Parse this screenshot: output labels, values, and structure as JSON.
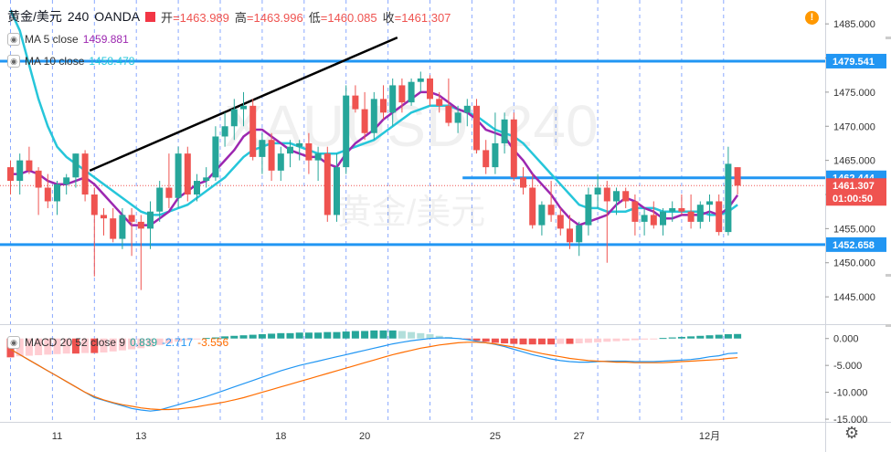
{
  "header": {
    "symbol": "黄金/美元",
    "interval": "240",
    "broker": "OANDA",
    "open_label": "开",
    "open": "1463.989",
    "high_label": "高",
    "high": "1463.996",
    "low_label": "低",
    "low": "1460.085",
    "close_label": "收",
    "close": "1461.307"
  },
  "watermark": {
    "line1": "XAUUSD, 240",
    "line2": "黄金/美元"
  },
  "indicators": {
    "ma5": {
      "label": "MA 5 close",
      "value": "1459.881",
      "color": "#9c27b0"
    },
    "ma10": {
      "label": "MA 10 close",
      "value": "1458.478",
      "color": "#26c6da"
    },
    "macd": {
      "label": "MACD 20 52 close 9",
      "hist": "0.839",
      "macd": "-2.717",
      "signal": "-3.556",
      "hist_color": "#26a69a",
      "macd_color": "#2196f3",
      "signal_color": "#ff6d00"
    }
  },
  "colors": {
    "up": "#26a69a",
    "down": "#ef5350",
    "hline": "#2196f3",
    "trend": "#000000",
    "close_line": "#ef5350"
  },
  "icons": {
    "warning": "warning-icon",
    "settings": "gear-icon",
    "visibility": "eye-icon"
  },
  "warning_glyph": "!",
  "settings_glyph": "⚙",
  "eye_glyph": "◉",
  "time_labels": [
    {
      "i": 5,
      "text": "11"
    },
    {
      "i": 14,
      "text": "13"
    },
    {
      "i": 29,
      "text": "18"
    },
    {
      "i": 38,
      "text": "20"
    },
    {
      "i": 52,
      "text": "25"
    },
    {
      "i": 61,
      "text": "27"
    },
    {
      "i": 75,
      "text": "12月"
    }
  ],
  "chart_data": {
    "type": "candlestick",
    "price_axis": {
      "min": 1441,
      "max": 1488.5,
      "ticks": [
        1445,
        1450,
        1455,
        1460,
        1465,
        1470,
        1475,
        1480,
        1485
      ]
    },
    "price_tick_labels": [
      "1445.000",
      "1450.000",
      "1455.000",
      "1460.000",
      "1465.000",
      "1470.000",
      "1475.000",
      "1480.000",
      "1485.000"
    ],
    "candles": [
      [
        1464,
        1465,
        1460,
        1462
      ],
      [
        1462,
        1466,
        1460,
        1465
      ],
      [
        1465,
        1467,
        1463,
        1463.5
      ],
      [
        1463.5,
        1464,
        1457,
        1461
      ],
      [
        1461,
        1463,
        1458,
        1459
      ],
      [
        1459,
        1462,
        1457,
        1461.5
      ],
      [
        1461.5,
        1463,
        1460,
        1462.5
      ],
      [
        1462.5,
        1466,
        1461,
        1466
      ],
      [
        1466,
        1466.5,
        1459,
        1460
      ],
      [
        1460,
        1461,
        1448,
        1457
      ],
      [
        1457,
        1458,
        1454,
        1456.5
      ],
      [
        1456.5,
        1458,
        1453,
        1453.5
      ],
      [
        1453.5,
        1458,
        1452,
        1457
      ],
      [
        1457,
        1458,
        1451,
        1456
      ],
      [
        1456,
        1457,
        1446,
        1455
      ],
      [
        1455,
        1459,
        1452,
        1457.5
      ],
      [
        1457.5,
        1462,
        1456,
        1461
      ],
      [
        1461,
        1466,
        1458,
        1459.5
      ],
      [
        1459.5,
        1467,
        1458,
        1466
      ],
      [
        1466,
        1467,
        1459,
        1460
      ],
      [
        1460,
        1463,
        1459,
        1462
      ],
      [
        1462,
        1464,
        1461,
        1462.5
      ],
      [
        1462.5,
        1470,
        1462,
        1468.5
      ],
      [
        1468.5,
        1472,
        1467,
        1470
      ],
      [
        1470,
        1474,
        1468,
        1472.5
      ],
      [
        1472.5,
        1475,
        1470,
        1473
      ],
      [
        1473,
        1474,
        1465,
        1465.5
      ],
      [
        1465.5,
        1469,
        1463,
        1468
      ],
      [
        1468,
        1469,
        1462,
        1463.5
      ],
      [
        1463.5,
        1467,
        1462,
        1466
      ],
      [
        1466,
        1468,
        1464,
        1467
      ],
      [
        1467,
        1468,
        1465,
        1467.5
      ],
      [
        1467.5,
        1469,
        1463,
        1465
      ],
      [
        1465,
        1467,
        1462,
        1466
      ],
      [
        1466,
        1467,
        1456,
        1457
      ],
      [
        1457,
        1466,
        1456,
        1464
      ],
      [
        1464,
        1476,
        1463,
        1474.5
      ],
      [
        1474.5,
        1476,
        1472,
        1472.5
      ],
      [
        1472.5,
        1475,
        1468,
        1469
      ],
      [
        1469,
        1475,
        1468,
        1474
      ],
      [
        1474,
        1476,
        1471,
        1472
      ],
      [
        1472,
        1477,
        1470,
        1476
      ],
      [
        1476,
        1477,
        1472,
        1473.5
      ],
      [
        1473.5,
        1477,
        1473,
        1476.5
      ],
      [
        1476.5,
        1478,
        1475,
        1477
      ],
      [
        1477,
        1477.5,
        1473,
        1474
      ],
      [
        1474,
        1475,
        1472,
        1473
      ],
      [
        1473,
        1477,
        1470,
        1470.5
      ],
      [
        1470.5,
        1473,
        1469,
        1472
      ],
      [
        1472,
        1474,
        1470,
        1473
      ],
      [
        1473,
        1474,
        1466,
        1466.5
      ],
      [
        1466.5,
        1468,
        1463,
        1464
      ],
      [
        1464,
        1472,
        1463,
        1467.5
      ],
      [
        1467.5,
        1472,
        1466,
        1471
      ],
      [
        1471,
        1472,
        1462,
        1462.5
      ],
      [
        1462.5,
        1464,
        1460,
        1461
      ],
      [
        1461,
        1463,
        1455,
        1455.5
      ],
      [
        1455.5,
        1459,
        1454,
        1458.5
      ],
      [
        1458.5,
        1462,
        1456,
        1457
      ],
      [
        1457,
        1458,
        1454,
        1455
      ],
      [
        1455,
        1457,
        1452,
        1453
      ],
      [
        1453,
        1456,
        1451,
        1455.5
      ],
      [
        1455.5,
        1461,
        1454,
        1460
      ],
      [
        1460,
        1463,
        1458,
        1461
      ],
      [
        1461,
        1462,
        1450,
        1459
      ],
      [
        1459,
        1461,
        1457,
        1460.5
      ],
      [
        1460.5,
        1461,
        1458,
        1459
      ],
      [
        1459,
        1460,
        1454,
        1456
      ],
      [
        1456,
        1458,
        1454,
        1457
      ],
      [
        1457,
        1459,
        1455,
        1455.5
      ],
      [
        1455.5,
        1458,
        1454,
        1457.5
      ],
      [
        1457.5,
        1459,
        1456,
        1458
      ],
      [
        1458,
        1460,
        1457,
        1457.5
      ],
      [
        1457.5,
        1460,
        1455,
        1456
      ],
      [
        1456,
        1459,
        1455,
        1458.5
      ],
      [
        1458.5,
        1460,
        1456,
        1459
      ],
      [
        1459,
        1460,
        1454,
        1454.5
      ],
      [
        1454.5,
        1467,
        1454,
        1464.5
      ],
      [
        1464,
        1464,
        1460,
        1461.3
      ]
    ],
    "ma5": [
      1463,
      1463,
      1463.5,
      1463,
      1462,
      1461.5,
      1461.5,
      1462,
      1462.5,
      1461.5,
      1460,
      1458.5,
      1457,
      1455.5,
      1455.5,
      1455.5,
      1456.5,
      1457.5,
      1459.5,
      1460.5,
      1461.5,
      1462,
      1463.5,
      1465,
      1466.5,
      1468.5,
      1469.5,
      1469.5,
      1468.5,
      1467.5,
      1466.5,
      1466,
      1465.5,
      1465.5,
      1464.5,
      1464,
      1466,
      1467.5,
      1468.5,
      1469.5,
      1471,
      1472,
      1473,
      1474,
      1475,
      1475,
      1474.5,
      1473.5,
      1472.5,
      1472,
      1471,
      1469.5,
      1469,
      1468.5,
      1466.5,
      1465,
      1463,
      1461.5,
      1460,
      1458,
      1456.5,
      1455.5,
      1456,
      1456.5,
      1457,
      1458.5,
      1459.5,
      1459,
      1458,
      1457.5,
      1456.5,
      1456.5,
      1457,
      1457,
      1457,
      1457.5,
      1457,
      1458,
      1459.9
    ],
    "ma10": [
      1487,
      1484,
      1479,
      1474,
      1470,
      1467,
      1465.5,
      1464.5,
      1463.5,
      1462.5,
      1461.5,
      1460.5,
      1459.5,
      1458.5,
      1457.5,
      1457,
      1457,
      1457.5,
      1458,
      1458.5,
      1459.5,
      1460.5,
      1461.5,
      1462.5,
      1464,
      1465.5,
      1466.5,
      1467,
      1467.5,
      1467.5,
      1467.5,
      1467,
      1466.5,
      1466,
      1466,
      1466,
      1466.5,
      1467,
      1467.5,
      1468,
      1469,
      1470,
      1471,
      1472,
      1472.5,
      1473,
      1473,
      1473,
      1472.5,
      1472,
      1471.5,
      1470.5,
      1469.5,
      1469,
      1468.5,
      1467.5,
      1466,
      1464.5,
      1463,
      1461.5,
      1460,
      1458.5,
      1458,
      1458,
      1457.5,
      1457.5,
      1457.5,
      1458,
      1458,
      1458,
      1457.5,
      1457.5,
      1457.5,
      1457.5,
      1457.5,
      1457,
      1457,
      1457.5,
      1458.5
    ],
    "hlines": [
      {
        "price": 1479.541,
        "label": "1479.541",
        "start": 0
      },
      {
        "price": 1462.444,
        "label": "1462.444",
        "start": 48.5
      },
      {
        "price": 1452.658,
        "label": "1452.658",
        "start": 0
      }
    ],
    "current_price": {
      "price": 1461.307,
      "label": "1461.307",
      "countdown": "01:00:50"
    },
    "trendline": [
      [
        8.5,
        1463.5
      ],
      [
        41.5,
        1483
      ]
    ],
    "macd_axis": {
      "min": -15.5,
      "max": 2.5,
      "ticks": [
        0,
        -5,
        -10,
        -15
      ],
      "labels": [
        "0.000",
        "-5.000",
        "-10.000",
        "-15.000"
      ]
    },
    "macd_hist": [
      -3.5,
      -3.3,
      -3.2,
      -3.1,
      -3,
      -2.9,
      -2.8,
      -2.8,
      -2.7,
      -2.7,
      -2.6,
      -2.4,
      -2.2,
      -2,
      -1.8,
      -1.5,
      -1.2,
      -0.9,
      -0.6,
      -0.3,
      -0.1,
      0.1,
      0.2,
      0.4,
      0.5,
      0.6,
      0.7,
      0.8,
      0.9,
      1,
      1,
      1.1,
      1.1,
      1.1,
      1.2,
      1.2,
      1.3,
      1.4,
      1.4,
      1.5,
      1.5,
      1.5,
      1.4,
      1.2,
      1,
      0.8,
      0.5,
      0.3,
      0.1,
      -0.2,
      -0.4,
      -0.6,
      -0.8,
      -0.9,
      -1,
      -1.1,
      -1.1,
      -1.1,
      -1.1,
      -1,
      -1,
      -0.9,
      -0.8,
      -0.7,
      -0.6,
      -0.5,
      -0.4,
      -0.3,
      -0.2,
      -0.1,
      0.1,
      0.2,
      0.3,
      0.4,
      0.5,
      0.6,
      0.7,
      0.8,
      0.84
    ],
    "macd_line": [
      -2,
      -3,
      -4,
      -5,
      -6,
      -7,
      -8,
      -9,
      -10,
      -11,
      -11.5,
      -12,
      -12.5,
      -13,
      -13.3,
      -13.5,
      -13.3,
      -12.8,
      -12.3,
      -11.8,
      -11.3,
      -10.8,
      -10.2,
      -9.6,
      -9,
      -8.4,
      -7.8,
      -7.2,
      -6.6,
      -6,
      -5.5,
      -5,
      -4.6,
      -4.2,
      -3.8,
      -3.4,
      -3,
      -2.6,
      -2.2,
      -1.8,
      -1.4,
      -1,
      -0.7,
      -0.4,
      -0.2,
      0,
      0.1,
      0.1,
      0,
      -0.2,
      -0.5,
      -0.8,
      -1.1,
      -1.5,
      -2,
      -2.5,
      -3,
      -3.4,
      -3.8,
      -4.1,
      -4.3,
      -4.4,
      -4.4,
      -4.3,
      -4.2,
      -4.2,
      -4.2,
      -4.3,
      -4.3,
      -4.3,
      -4.2,
      -4.1,
      -4,
      -3.9,
      -3.7,
      -3.4,
      -3.2,
      -2.8,
      -2.7
    ],
    "signal_line": [
      -2,
      -3,
      -4,
      -5,
      -6,
      -7,
      -8,
      -9,
      -10,
      -10.8,
      -11.4,
      -11.9,
      -12.3,
      -12.6,
      -12.9,
      -13.1,
      -13.2,
      -13.2,
      -13.1,
      -12.9,
      -12.7,
      -12.4,
      -12.1,
      -11.8,
      -11.4,
      -11,
      -10.5,
      -10,
      -9.5,
      -9,
      -8.5,
      -8,
      -7.5,
      -7,
      -6.5,
      -6,
      -5.5,
      -5,
      -4.5,
      -4,
      -3.5,
      -3,
      -2.6,
      -2.2,
      -1.8,
      -1.5,
      -1.2,
      -1,
      -0.8,
      -0.7,
      -0.7,
      -0.8,
      -1,
      -1.3,
      -1.6,
      -2,
      -2.4,
      -2.8,
      -3.1,
      -3.4,
      -3.7,
      -3.9,
      -4.1,
      -4.2,
      -4.3,
      -4.4,
      -4.4,
      -4.5,
      -4.5,
      -4.5,
      -4.5,
      -4.4,
      -4.3,
      -4.2,
      -4.1,
      -4,
      -3.9,
      -3.7,
      -3.56
    ]
  }
}
